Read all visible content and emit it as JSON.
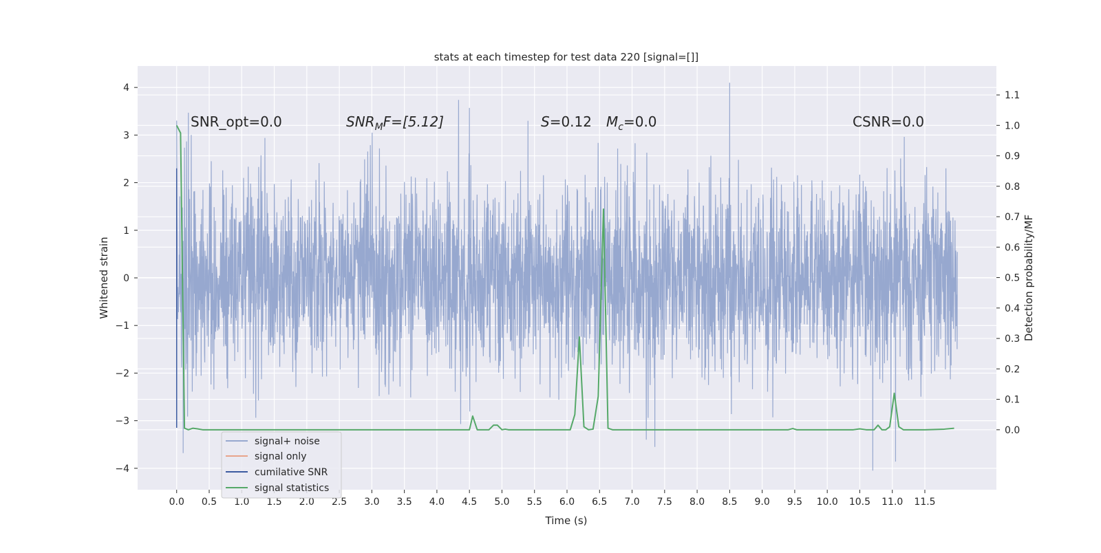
{
  "chart_data": {
    "type": "line",
    "title": "stats at each timestep for test data 220 [signal=[]]",
    "xlabel": "Time (s)",
    "ylabel": "Whitened strain",
    "y2label": "Detection probability/MF",
    "xlim": [
      -0.6,
      12.6
    ],
    "ylim": [
      -4.45,
      4.45
    ],
    "y2lim": [
      -0.197,
      1.195
    ],
    "xticks": [
      0.0,
      0.5,
      1.0,
      1.5,
      2.0,
      2.5,
      3.0,
      3.5,
      4.0,
      4.5,
      5.0,
      5.5,
      6.0,
      6.5,
      7.0,
      7.5,
      8.0,
      8.5,
      9.0,
      9.5,
      10.0,
      10.5,
      11.0,
      11.5
    ],
    "xtick_labels": [
      "0.0",
      "0.5",
      "1.0",
      "1.5",
      "2.0",
      "2.5",
      "3.0",
      "3.5",
      "4.0",
      "4.5",
      "5.0",
      "5.5",
      "6.0",
      "6.5",
      "7.0",
      "7.5",
      "8.0",
      "8.5",
      "9.0",
      "9.5",
      "10.0",
      "10.5",
      "11.0",
      "11.5"
    ],
    "yticks": [
      -4,
      -3,
      -2,
      -1,
      0,
      1,
      2,
      3,
      4
    ],
    "ytick_labels": [
      "−4",
      "−3",
      "−2",
      "−1",
      "0",
      "1",
      "2",
      "3",
      "4"
    ],
    "y2ticks": [
      0.0,
      0.1,
      0.2,
      0.3,
      0.4,
      0.5,
      0.6,
      0.7,
      0.8,
      0.9,
      1.0,
      1.1
    ],
    "y2tick_labels": [
      "0.0",
      "0.1",
      "0.2",
      "0.3",
      "0.4",
      "0.5",
      "0.6",
      "0.7",
      "0.8",
      "0.9",
      "1.0",
      "1.1"
    ],
    "grid": true,
    "legend_position": "lower-left",
    "annotations": {
      "snr_opt": "SNR_opt=0.0",
      "snr_mf_main": "SNR",
      "snr_mf_sub": "M",
      "snr_mf_tail": "F=[5.12]",
      "s_var": "S",
      "s_value": "=0.12",
      "mc_var": "M",
      "mc_sub": "c",
      "mc_value": "=0.0",
      "csnr": "CSNR=0.0"
    },
    "series": [
      {
        "name": "signal+ noise",
        "color": "#97a8cf",
        "x_range": [
          0.0,
          12.0
        ],
        "amplitude_envelope": [
          -4.1,
          4.1
        ],
        "notable_peaks": [
          {
            "x": 0.18,
            "y": 3.47
          },
          {
            "x": 4.5,
            "y": 3.57
          },
          {
            "x": 5.4,
            "y": 3.3
          },
          {
            "x": 8.5,
            "y": 4.1
          },
          {
            "x": 0.1,
            "y": -3.68
          },
          {
            "x": 7.35,
            "y": -3.55
          },
          {
            "x": 10.7,
            "y": -4.05
          },
          {
            "x": 11.05,
            "y": -3.86
          }
        ]
      },
      {
        "name": "signal only",
        "color": "#e8a48a",
        "x": [],
        "y": []
      },
      {
        "name": "cumilative SNR",
        "color": "#3b5aa0",
        "x": [
          0.0,
          0.0
        ],
        "y": [
          -3.15,
          2.3
        ]
      },
      {
        "name": "signal statistics",
        "color": "#55a868",
        "axis": "right",
        "x": [
          0.0,
          0.06,
          0.12,
          0.18,
          0.25,
          0.32,
          0.4,
          0.5,
          1.0,
          1.5,
          2.0,
          2.5,
          3.0,
          3.5,
          4.0,
          4.4,
          4.5,
          4.55,
          4.62,
          4.7,
          4.8,
          4.87,
          4.93,
          5.0,
          5.05,
          5.1,
          5.2,
          5.5,
          5.8,
          6.05,
          6.12,
          6.19,
          6.26,
          6.33,
          6.4,
          6.48,
          6.56,
          6.63,
          6.7,
          6.8,
          7.0,
          7.5,
          8.0,
          8.5,
          9.0,
          9.4,
          9.47,
          9.53,
          9.6,
          10.0,
          10.4,
          10.5,
          10.6,
          10.72,
          10.78,
          10.84,
          10.9,
          10.96,
          11.03,
          11.1,
          11.17,
          11.23,
          11.3,
          11.5,
          11.8,
          11.95
        ],
        "y": [
          1.0,
          0.975,
          0.005,
          0.0,
          0.005,
          0.003,
          0.0,
          0.0,
          0.0,
          0.0,
          0.0,
          0.0,
          0.0,
          0.0,
          0.0,
          0.0,
          0.0,
          0.045,
          0.0,
          0.0,
          0.0,
          0.015,
          0.015,
          0.0,
          0.002,
          0.0,
          0.0,
          0.0,
          0.0,
          0.0,
          0.05,
          0.305,
          0.01,
          0.0,
          0.002,
          0.11,
          0.725,
          0.005,
          0.0,
          0.0,
          0.0,
          0.0,
          0.0,
          0.0,
          0.0,
          0.0,
          0.004,
          0.0,
          0.0,
          0.0,
          0.0,
          0.003,
          0.0,
          0.0,
          0.015,
          0.0,
          0.0,
          0.01,
          0.12,
          0.01,
          0.0,
          0.0,
          0.0,
          0.0,
          0.002,
          0.005
        ]
      }
    ]
  }
}
